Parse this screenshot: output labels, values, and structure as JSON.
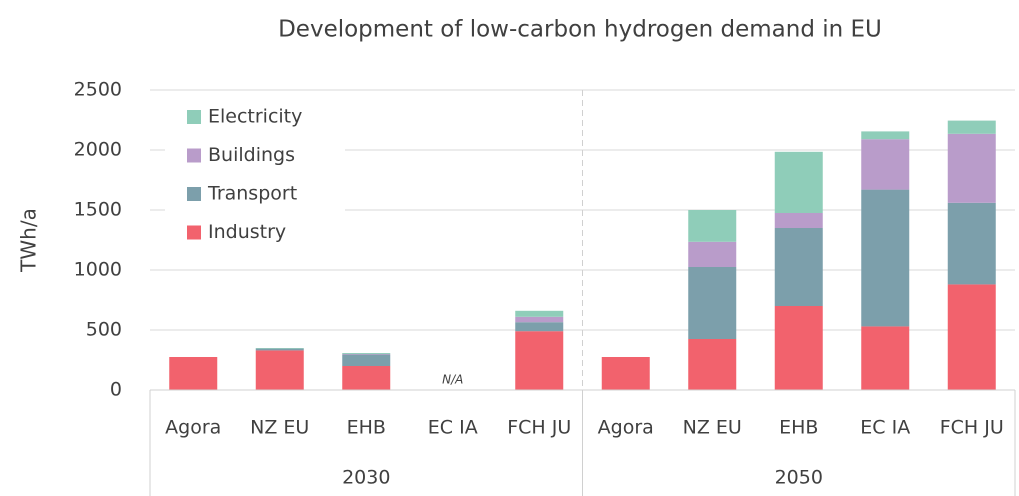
{
  "chart_data": {
    "type": "stacked_bar",
    "title": "Development of low-carbon hydrogen demand in EU",
    "y_label": "TWh/a",
    "groups": [
      {
        "label": "2030",
        "categories": [
          "Agora",
          "NZ EU",
          "EHB",
          "EC IA",
          "FCH JU"
        ]
      },
      {
        "label": "2050",
        "categories": [
          "Agora",
          "NZ EU",
          "EHB",
          "EC IA",
          "FCH JU"
        ]
      }
    ],
    "series": [
      {
        "name": "Industry",
        "color": "#f2626d",
        "values": [
          275,
          330,
          200,
          null,
          490,
          275,
          425,
          700,
          530,
          880
        ]
      },
      {
        "name": "Transport",
        "color": "#7c9fab",
        "values": [
          0,
          15,
          95,
          null,
          75,
          0,
          600,
          650,
          1140,
          680
        ]
      },
      {
        "name": "Buildings",
        "color": "#b99cca",
        "values": [
          0,
          0,
          5,
          null,
          45,
          0,
          210,
          125,
          420,
          575
        ]
      },
      {
        "name": "Electricity",
        "color": "#8fcdb9",
        "values": [
          0,
          5,
          8,
          null,
          50,
          0,
          265,
          510,
          65,
          110
        ]
      }
    ],
    "annotations": [
      {
        "text": "N/A",
        "group": 0,
        "category": 3
      }
    ],
    "ylim": [
      0,
      2500
    ],
    "yticks": [
      0,
      500,
      1000,
      1500,
      2000,
      2500
    ],
    "grid": true,
    "legend": "top-left"
  }
}
